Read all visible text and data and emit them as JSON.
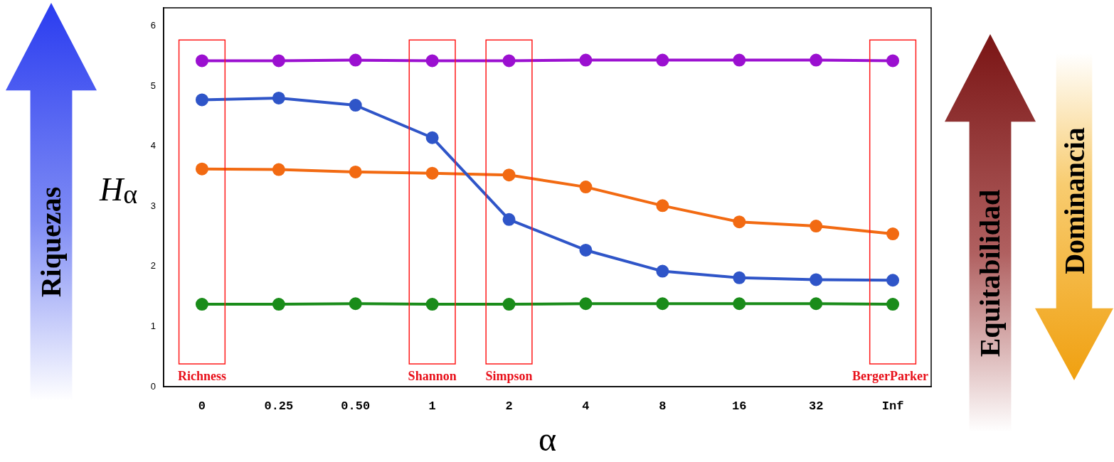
{
  "chart_data": {
    "type": "line",
    "xlabel": "α",
    "ylabel": "H$_{α}$",
    "categories": [
      "0",
      "0.25",
      "0.50",
      "1",
      "2",
      "4",
      "8",
      "16",
      "32",
      "Inf"
    ],
    "series": [
      {
        "color": "#9b10d0",
        "values": [
          5.42,
          5.42,
          5.43,
          5.42,
          5.42,
          5.43,
          5.43,
          5.43,
          5.43,
          5.42
        ]
      },
      {
        "color": "#2f55c8",
        "values": [
          4.77,
          4.8,
          4.68,
          4.14,
          2.78,
          2.27,
          1.92,
          1.81,
          1.78,
          1.77
        ]
      },
      {
        "color": "#f26a12",
        "values": [
          3.62,
          3.61,
          3.57,
          3.55,
          3.52,
          3.32,
          3.01,
          2.74,
          2.67,
          2.54
        ]
      },
      {
        "color": "#1a8c1a",
        "values": [
          1.37,
          1.37,
          1.38,
          1.37,
          1.37,
          1.38,
          1.38,
          1.38,
          1.38,
          1.37
        ]
      }
    ],
    "ylim": [
      0,
      6.3
    ],
    "yticks": [
      0,
      1,
      2,
      3,
      4,
      5,
      6
    ],
    "grid": false,
    "legend": false,
    "marker": "circle",
    "line_style": "solid",
    "annotations": [
      "Richness",
      "Shannon",
      "Simpson",
      "BergerParker",
      "Riquezas",
      "Equitabilidad",
      "Dominancia"
    ]
  }
}
